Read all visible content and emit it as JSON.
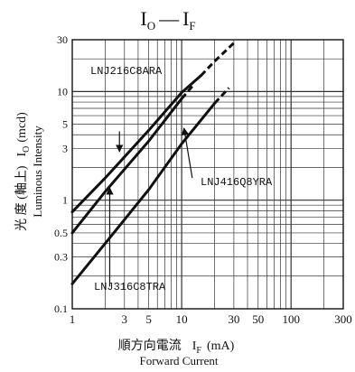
{
  "chart_data": {
    "type": "line",
    "title_main": "I",
    "title_main_sub": "O",
    "title_dash": "—",
    "title_second": "I",
    "title_second_sub": "F",
    "x_scale": "log",
    "y_scale": "log",
    "xlim": [
      1,
      300
    ],
    "ylim": [
      0.1,
      30
    ],
    "grid": true,
    "x_ticks": [
      {
        "value": 1,
        "label": "1"
      },
      {
        "value": 3,
        "label": "3"
      },
      {
        "value": 5,
        "label": "5"
      },
      {
        "value": 10,
        "label": "10"
      },
      {
        "value": 30,
        "label": "30"
      },
      {
        "value": 50,
        "label": "50"
      },
      {
        "value": 100,
        "label": "100"
      },
      {
        "value": 300,
        "label": "300"
      }
    ],
    "y_ticks": [
      {
        "value": 0.1,
        "label": "0.1"
      },
      {
        "value": 0.3,
        "label": "0.3"
      },
      {
        "value": 0.5,
        "label": "0.5"
      },
      {
        "value": 1,
        "label": "1"
      },
      {
        "value": 3,
        "label": "3"
      },
      {
        "value": 5,
        "label": "5"
      },
      {
        "value": 10,
        "label": "10"
      },
      {
        "value": 30,
        "label": "30"
      }
    ],
    "xlabel_jp": "順方向電流",
    "xlabel_sym": "I",
    "xlabel_sub": "F",
    "xlabel_unit": "(mA)",
    "xlabel_en": "Forward Current",
    "ylabel_jp": "光 度 (軸上)",
    "ylabel_sym": "I",
    "ylabel_sub": "O",
    "ylabel_unit": "(mcd)",
    "ylabel_en": "Luminous Intensity",
    "series": [
      {
        "name": "LNJ216C8ARA",
        "solid": [
          [
            1,
            0.78
          ],
          [
            2,
            1.6
          ],
          [
            5,
            4.4
          ],
          [
            10,
            9.8
          ],
          [
            15,
            14
          ]
        ],
        "dashed": [
          [
            15,
            14
          ],
          [
            20,
            19
          ],
          [
            30,
            28
          ]
        ],
        "arrow_to": [
          2.7,
          2.8
        ],
        "arrow_from": [
          2.7,
          4.3
        ]
      },
      {
        "name": "LNJ316C8TRA",
        "solid": [
          [
            1,
            0.5
          ],
          [
            2,
            1.2
          ],
          [
            5,
            3.5
          ],
          [
            10,
            8.6
          ]
        ],
        "dashed": [
          [
            10,
            8.6
          ],
          [
            12.8,
            11.5
          ]
        ],
        "arrow_to": [
          2.2,
          1.3
        ],
        "arrow_from": [
          2.2,
          0.16
        ]
      },
      {
        "name": "LNJ416Q8YRA",
        "solid": [
          [
            1,
            0.17
          ],
          [
            2,
            0.4
          ],
          [
            5,
            1.25
          ],
          [
            10,
            3.3
          ],
          [
            20,
            7.8
          ]
        ],
        "dashed": [
          [
            20,
            7.8
          ],
          [
            27,
            10.8
          ]
        ],
        "arrow_to": [
          10.5,
          4.6
        ],
        "arrow_from": [
          12.5,
          1.6
        ]
      }
    ]
  }
}
